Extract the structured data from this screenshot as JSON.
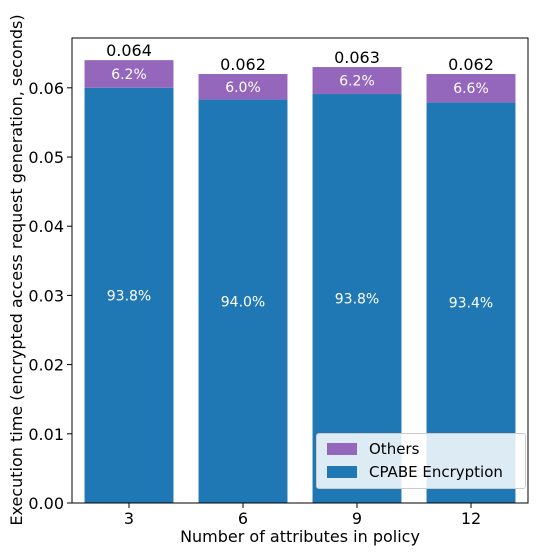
{
  "chart_data": {
    "type": "bar",
    "stacked": true,
    "categories": [
      "3",
      "6",
      "9",
      "12"
    ],
    "series": [
      {
        "name": "CPABE Encryption",
        "color": "#1f77b4",
        "values": [
          0.06,
          0.0583,
          0.0591,
          0.0579
        ],
        "percent_labels": [
          "93.8%",
          "94.0%",
          "93.8%",
          "93.4%"
        ]
      },
      {
        "name": "Others",
        "color": "#9467bd",
        "values": [
          0.004,
          0.0037,
          0.0039,
          0.0041
        ],
        "percent_labels": [
          "6.2%",
          "6.0%",
          "6.2%",
          "6.6%"
        ]
      }
    ],
    "totals": [
      0.064,
      0.062,
      0.063,
      0.062
    ],
    "total_labels": [
      "0.064",
      "0.062",
      "0.063",
      "0.062"
    ],
    "xlabel": "Number of attributes in policy",
    "ylabel": "Execution time (encrypted access request generation, seconds)",
    "ylim": [
      0,
      0.0672
    ],
    "yticks": [
      "0.00",
      "0.01",
      "0.02",
      "0.03",
      "0.04",
      "0.05",
      "0.06"
    ],
    "ytick_values": [
      0,
      0.01,
      0.02,
      0.03,
      0.04,
      0.05,
      0.06
    ],
    "grid": false,
    "legend_position": "lower-right"
  }
}
